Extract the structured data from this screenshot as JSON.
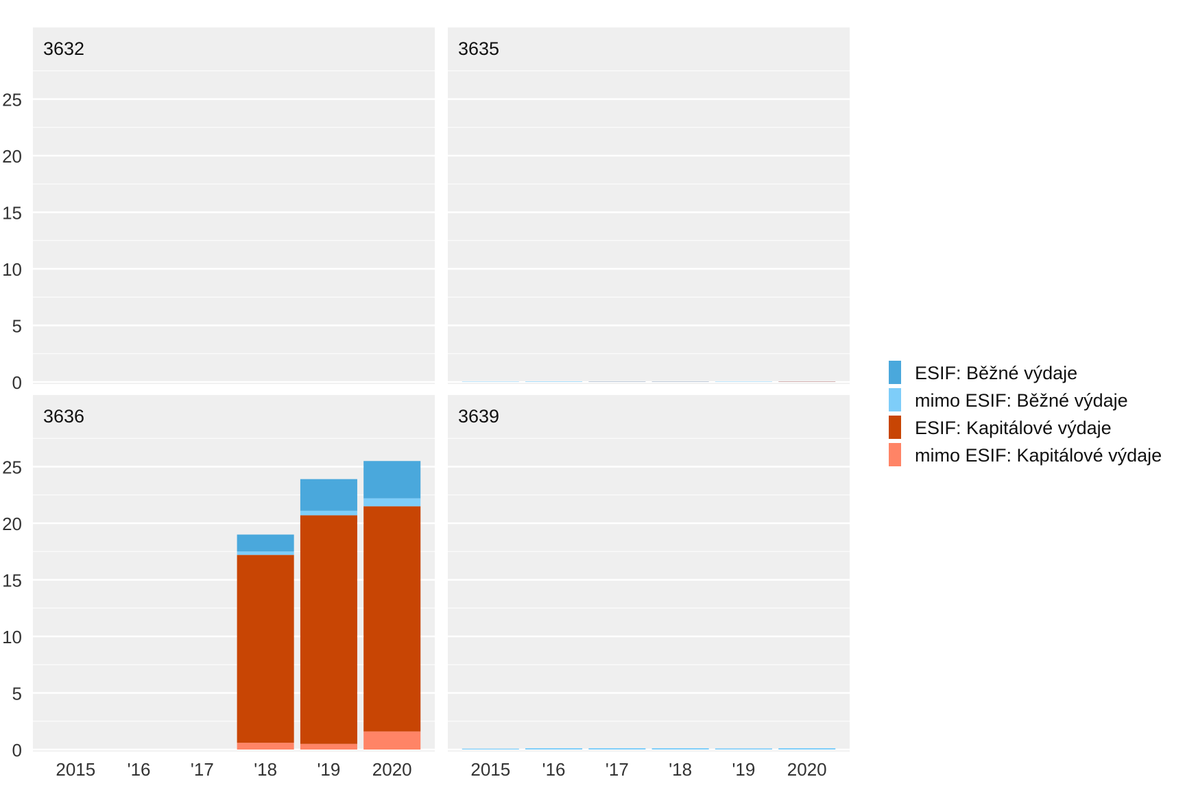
{
  "chart_data": {
    "type": "bar",
    "stacked": true,
    "facets": [
      "3632",
      "3635",
      "3636",
      "3639"
    ],
    "categories": [
      "2015",
      "'16",
      "'17",
      "'18",
      "'19",
      "2020"
    ],
    "ylim": [
      0,
      28
    ],
    "yticks": [
      0,
      5,
      10,
      15,
      20,
      25
    ],
    "grid": true,
    "legend_position": "right",
    "legend": [
      {
        "label": "ESIF: Běžné výdaje",
        "color": "#4AA8DC"
      },
      {
        "label": "mimo ESIF: Běžné výdaje",
        "color": "#7ECDF9"
      },
      {
        "label": "ESIF: Kapitálové výdaje",
        "color": "#C84504"
      },
      {
        "label": "mimo ESIF: Kapitálové výdaje",
        "color": "#FF8466"
      }
    ],
    "panels": [
      {
        "title": "3632",
        "series": [
          {
            "name": "mimo ESIF: Kapitálové výdaje",
            "values": [
              0,
              0,
              0,
              0,
              0,
              0
            ]
          },
          {
            "name": "ESIF: Kapitálové výdaje",
            "values": [
              0,
              0,
              0,
              0,
              0,
              0
            ]
          },
          {
            "name": "mimo ESIF: Běžné výdaje",
            "values": [
              0,
              0,
              0,
              0,
              0,
              0
            ]
          },
          {
            "name": "ESIF: Běžné výdaje",
            "values": [
              0,
              0,
              0,
              0,
              0,
              0
            ]
          }
        ]
      },
      {
        "title": "3635",
        "series": [
          {
            "name": "mimo ESIF: Kapitálové výdaje",
            "values": [
              0,
              0,
              0.02,
              0.02,
              0,
              0.03
            ]
          },
          {
            "name": "ESIF: Kapitálové výdaje",
            "values": [
              0,
              0,
              0,
              0,
              0,
              0
            ]
          },
          {
            "name": "mimo ESIF: Běžné výdaje",
            "values": [
              0.03,
              0.04,
              0.03,
              0.03,
              0.03,
              0.02
            ]
          },
          {
            "name": "ESIF: Běžné výdaje",
            "values": [
              0,
              0,
              0,
              0,
              0,
              0
            ]
          }
        ]
      },
      {
        "title": "3636",
        "series": [
          {
            "name": "mimo ESIF: Kapitálové výdaje",
            "values": [
              0,
              0,
              0,
              0.6,
              0.5,
              1.6
            ]
          },
          {
            "name": "ESIF: Kapitálové výdaje",
            "values": [
              0,
              0,
              0,
              16.6,
              20.2,
              19.9
            ]
          },
          {
            "name": "mimo ESIF: Běžné výdaje",
            "values": [
              0,
              0,
              0,
              0.3,
              0.4,
              0.7
            ]
          },
          {
            "name": "ESIF: Běžné výdaje",
            "values": [
              0,
              0,
              0,
              1.5,
              2.8,
              3.3
            ]
          }
        ]
      },
      {
        "title": "3639",
        "series": [
          {
            "name": "mimo ESIF: Kapitálové výdaje",
            "values": [
              0,
              0,
              0,
              0,
              0,
              0
            ]
          },
          {
            "name": "ESIF: Kapitálové výdaje",
            "values": [
              0,
              0,
              0,
              0,
              0,
              0
            ]
          },
          {
            "name": "mimo ESIF: Běžné výdaje",
            "values": [
              0.08,
              0.12,
              0.12,
              0.12,
              0.1,
              0.12
            ]
          },
          {
            "name": "ESIF: Běžné výdaje",
            "values": [
              0,
              0,
              0,
              0,
              0,
              0
            ]
          }
        ]
      }
    ],
    "colors": {
      "panel_background": "#EFEFEF",
      "grid": "#FFFFFF"
    }
  }
}
